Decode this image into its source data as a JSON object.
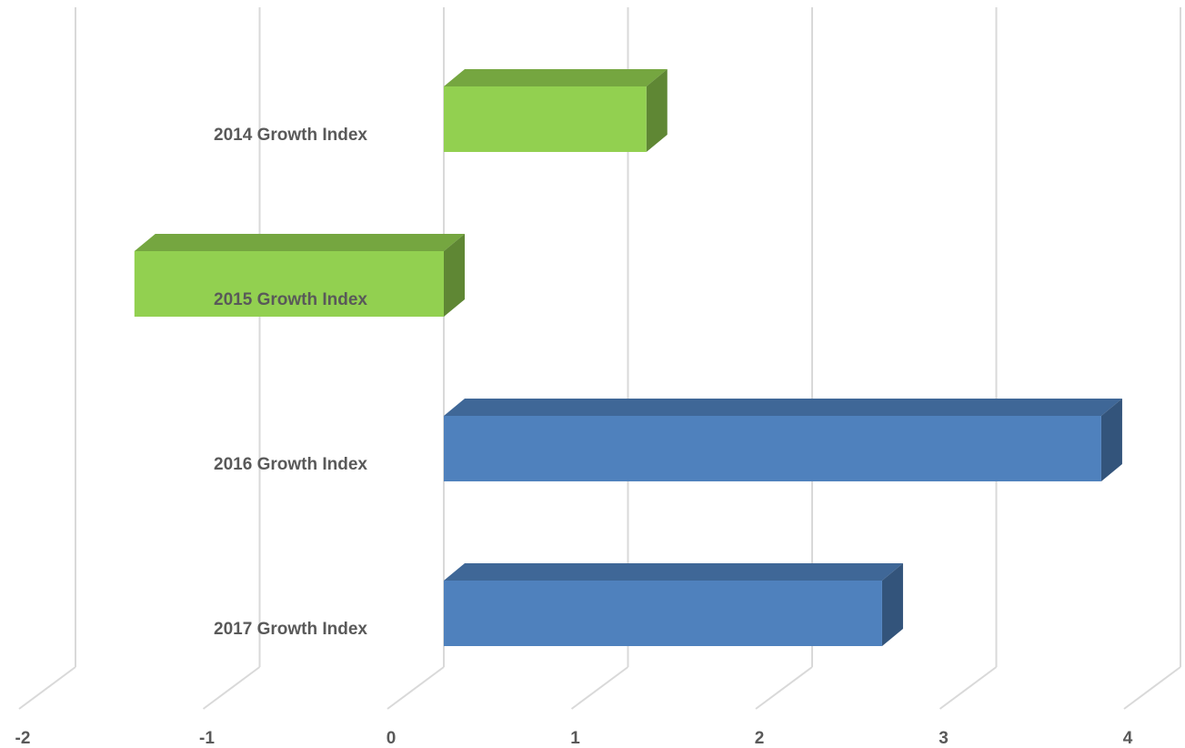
{
  "chart_data": {
    "type": "bar",
    "orientation": "horizontal",
    "style": "3d",
    "title": "",
    "xlabel": "",
    "ylabel": "",
    "categories": [
      "2014 Growth Index",
      "2015 Growth Index",
      "2016 Growth Index",
      "2017 Growth Index"
    ],
    "values": [
      1.1,
      -1.68,
      3.57,
      2.38
    ],
    "bar_colors": [
      "#92d050",
      "#92d050",
      "#4f81bd",
      "#4f81bd"
    ],
    "xlim": [
      -2,
      4
    ],
    "xticks": [
      "-2",
      "-1",
      "0",
      "1",
      "2",
      "3",
      "4"
    ],
    "grid": true,
    "legend": "none"
  }
}
